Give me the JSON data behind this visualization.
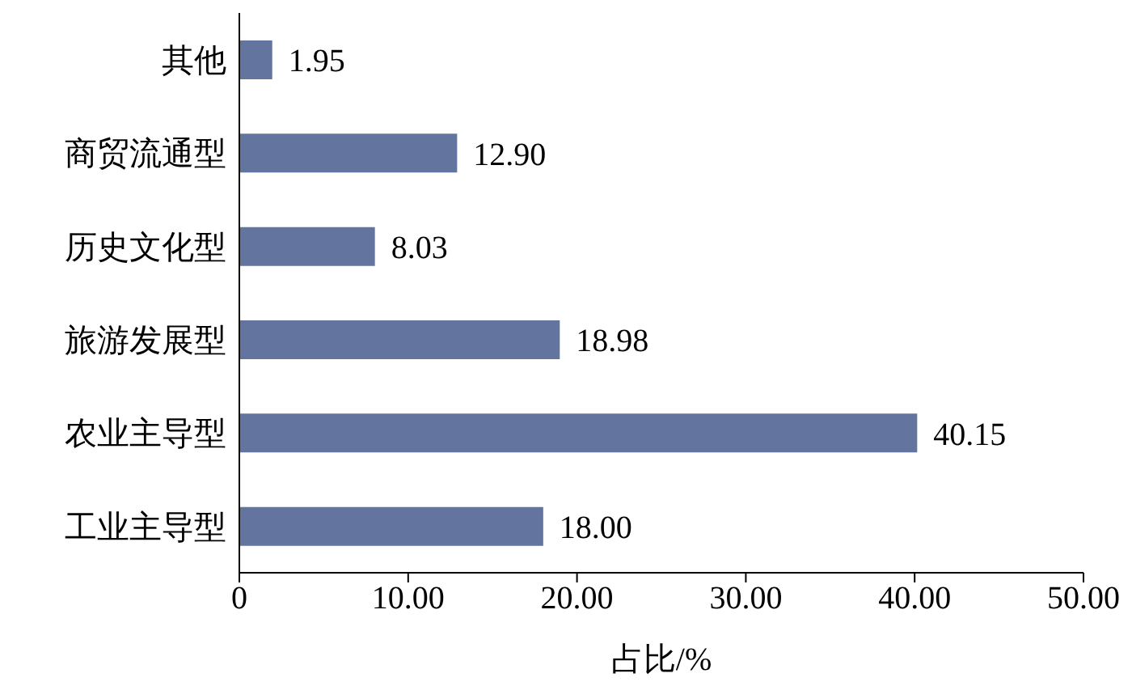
{
  "chart_data": {
    "type": "bar",
    "orientation": "horizontal",
    "xlabel": "占比/%",
    "categories": [
      "其他",
      "商贸流通型",
      "历史文化型",
      "旅游发展型",
      "农业主导型",
      "工业主导型"
    ],
    "values": [
      1.95,
      12.9,
      8.03,
      18.98,
      40.15,
      18.0
    ],
    "value_labels": [
      "1.95",
      "12.90",
      "8.03",
      "18.98",
      "40.15",
      "18.00"
    ],
    "color": "#63759f",
    "xlim": [
      0,
      50
    ],
    "xticks": [
      0,
      {
        "value": 10,
        "label": "10.00"
      },
      {
        "value": 20,
        "label": "20.00"
      },
      {
        "value": 30,
        "label": "30.00"
      },
      {
        "value": 40,
        "label": "40.00"
      },
      {
        "value": 50,
        "label": "50.00"
      }
    ],
    "grid": false,
    "legend": false
  }
}
